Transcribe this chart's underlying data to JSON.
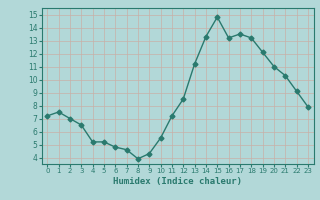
{
  "x": [
    0,
    1,
    2,
    3,
    4,
    5,
    6,
    7,
    8,
    9,
    10,
    11,
    12,
    13,
    14,
    15,
    16,
    17,
    18,
    19,
    20,
    21,
    22,
    23
  ],
  "y": [
    7.2,
    7.5,
    7.0,
    6.5,
    5.2,
    5.2,
    4.8,
    4.6,
    3.9,
    4.3,
    5.5,
    7.2,
    8.5,
    11.2,
    13.3,
    14.8,
    13.2,
    13.5,
    13.2,
    12.1,
    11.0,
    10.3,
    9.1,
    7.9
  ],
  "line_color": "#2a7a6e",
  "marker": "D",
  "marker_size": 2.5,
  "xlabel": "Humidex (Indice chaleur)",
  "xlim": [
    -0.5,
    23.5
  ],
  "ylim": [
    3.5,
    15.5
  ],
  "yticks": [
    4,
    5,
    6,
    7,
    8,
    9,
    10,
    11,
    12,
    13,
    14,
    15
  ],
  "xticks": [
    0,
    1,
    2,
    3,
    4,
    5,
    6,
    7,
    8,
    9,
    10,
    11,
    12,
    13,
    14,
    15,
    16,
    17,
    18,
    19,
    20,
    21,
    22,
    23
  ],
  "bg_color": "#b2d8d8",
  "grid_color": "#c8b0a8",
  "fig_bg": "#b2d8d8",
  "tick_color": "#2a7a6e",
  "spine_color": "#2a7a6e"
}
